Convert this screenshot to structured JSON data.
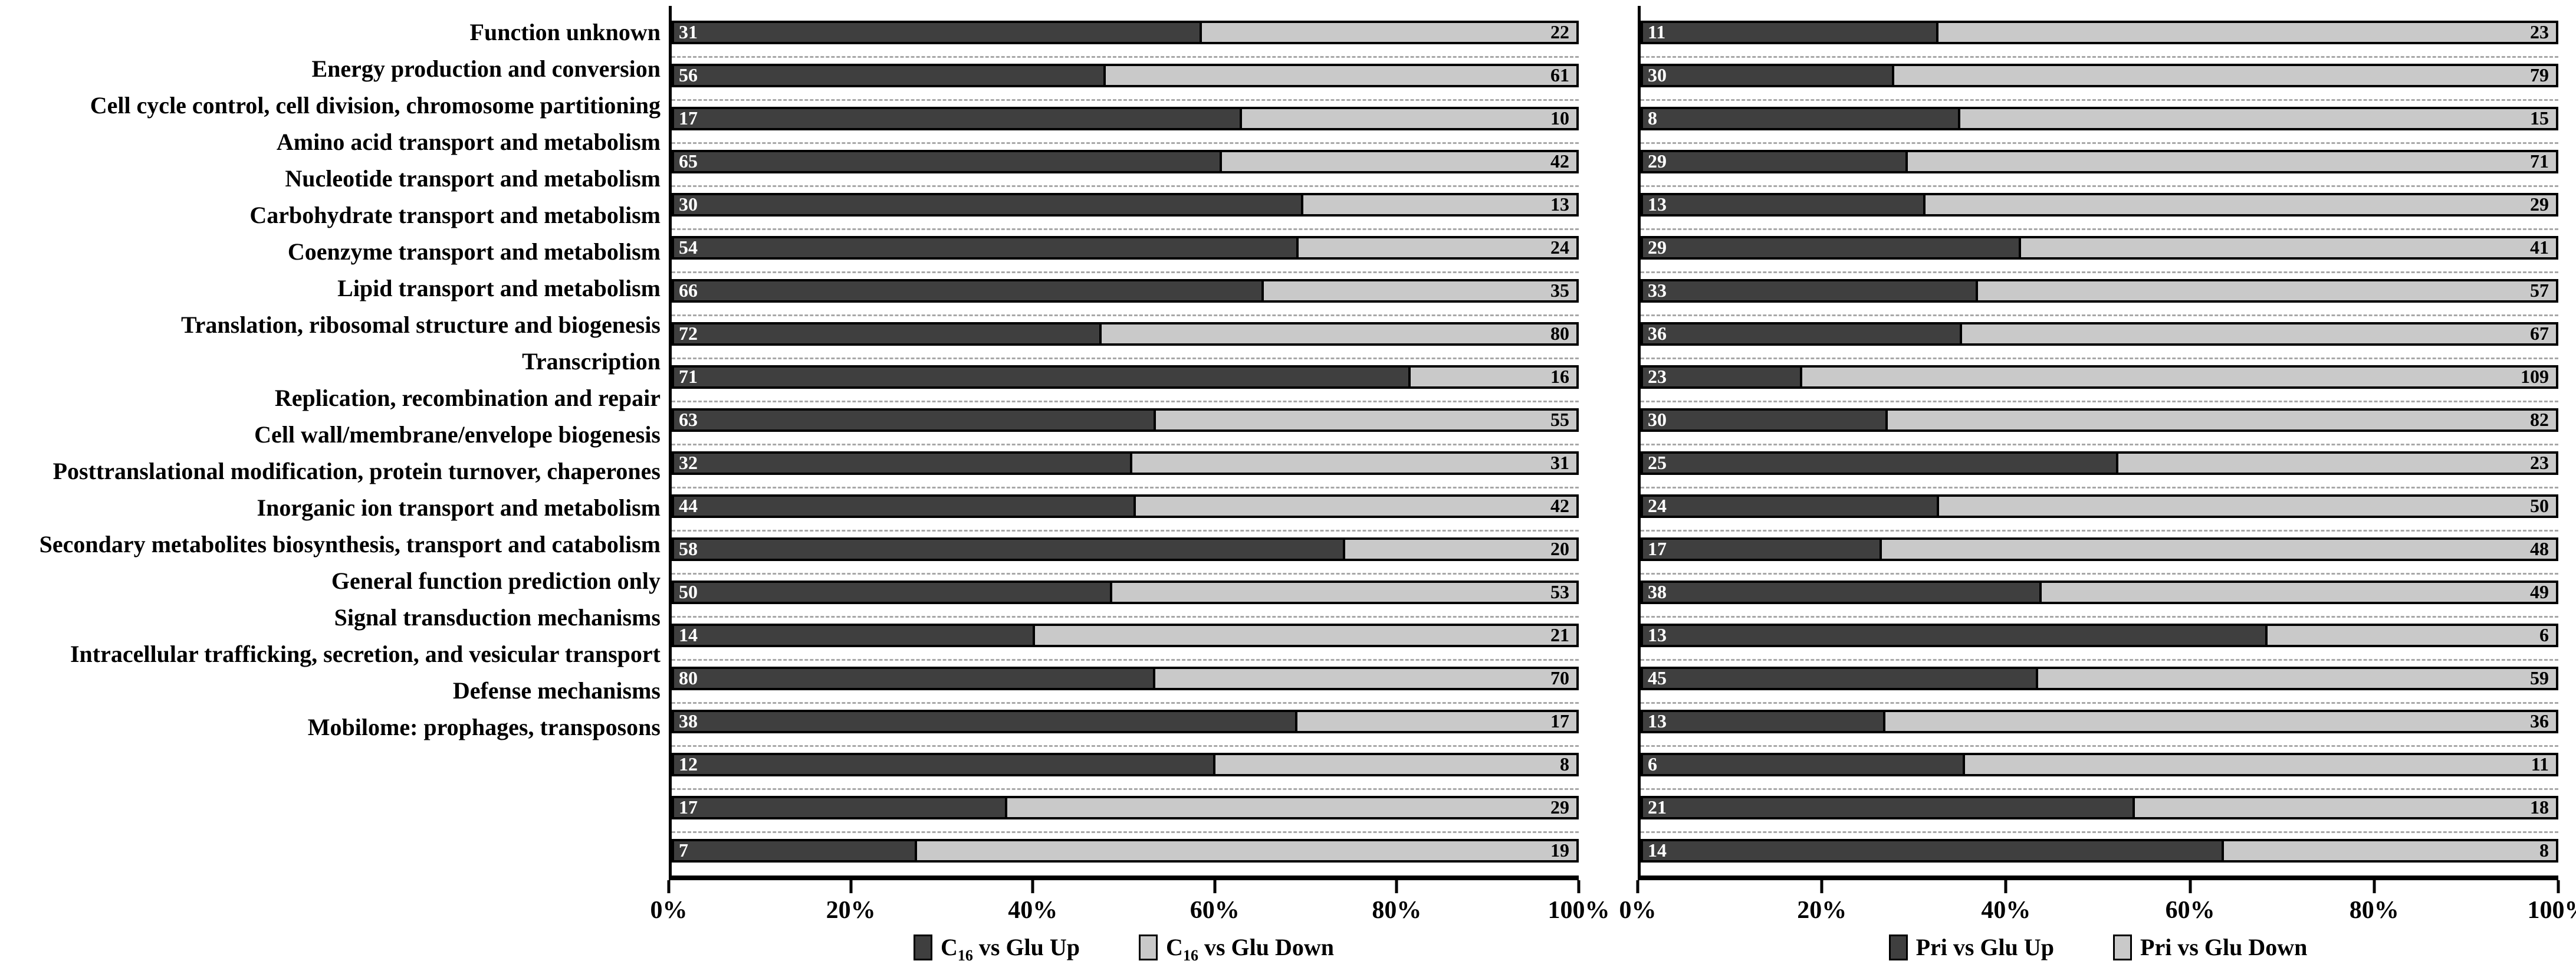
{
  "colors": {
    "up_fill": "#3f3f3f",
    "down_fill": "#c9c9c9",
    "bar_border": "#000000",
    "separator_dash": "#a8a8a8",
    "background": "#ffffff"
  },
  "chart_data": [
    {
      "type": "bar",
      "subtype": "horizontal-100pct-stacked",
      "panel": "left",
      "xlim": [
        0,
        100
      ],
      "x_ticks": [
        "0%",
        "20%",
        "40%",
        "60%",
        "80%",
        "100%"
      ],
      "grid": "dashed horizontal separators between bars",
      "legend_position": "bottom-center",
      "categories": [
        "Function unknown",
        "Energy production and conversion",
        "Cell cycle control, cell division, chromosome partitioning",
        "Amino acid transport and metabolism",
        "Nucleotide transport and metabolism",
        "Carbohydrate transport and metabolism",
        "Coenzyme transport and metabolism",
        "Lipid transport and metabolism",
        "Translation, ribosomal structure and biogenesis",
        "Transcription",
        "Replication, recombination and repair",
        "Cell wall/membrane/envelope biogenesis",
        "Posttranslational modification, protein turnover, chaperones",
        "Inorganic ion transport and metabolism",
        "Secondary metabolites biosynthesis, transport and catabolism",
        "General function prediction only",
        "Signal transduction mechanisms",
        "Intracellular trafficking, secretion, and vesicular transport",
        "Defense mechanisms",
        "Mobilome: prophages, transposons"
      ],
      "series": [
        {
          "name": "C16 vs Glu Up",
          "legend_pre": "C",
          "legend_sub": "16",
          "legend_post": " vs Glu Up",
          "color": "#3f3f3f",
          "values": [
            31,
            56,
            17,
            65,
            30,
            54,
            66,
            72,
            71,
            63,
            32,
            44,
            58,
            50,
            14,
            80,
            38,
            12,
            17,
            7
          ]
        },
        {
          "name": "C16 vs Glu Down",
          "legend_pre": "C",
          "legend_sub": "16",
          "legend_post": " vs Glu Down",
          "color": "#c9c9c9",
          "values": [
            22,
            61,
            10,
            42,
            13,
            24,
            35,
            80,
            16,
            55,
            31,
            42,
            20,
            53,
            21,
            70,
            17,
            8,
            29,
            19
          ]
        }
      ]
    },
    {
      "type": "bar",
      "subtype": "horizontal-100pct-stacked",
      "panel": "right",
      "xlim": [
        0,
        100
      ],
      "x_ticks": [
        "0%",
        "20%",
        "40%",
        "60%",
        "80%",
        "100%"
      ],
      "grid": "dashed horizontal separators between bars",
      "legend_position": "bottom-center",
      "categories": [
        "Function unknown",
        "Energy production and conversion",
        "Cell cycle control, cell division, chromosome partitioning",
        "Amino acid transport and metabolism",
        "Nucleotide transport and metabolism",
        "Carbohydrate transport and metabolism",
        "Coenzyme transport and metabolism",
        "Lipid transport and metabolism",
        "Translation, ribosomal structure and biogenesis",
        "Transcription",
        "Replication, recombination and repair",
        "Cell wall/membrane/envelope biogenesis",
        "Posttranslational modification, protein turnover, chaperones",
        "Inorganic ion transport and metabolism",
        "Secondary metabolites biosynthesis, transport and catabolism",
        "General function prediction only",
        "Signal transduction mechanisms",
        "Intracellular trafficking, secretion, and vesicular transport",
        "Defense mechanisms",
        "Mobilome: prophages, transposons"
      ],
      "series": [
        {
          "name": "Pri vs Glu Up",
          "legend_pre": "Pri",
          "legend_sub": "",
          "legend_post": " vs Glu Up",
          "color": "#3f3f3f",
          "values": [
            11,
            30,
            8,
            29,
            13,
            29,
            33,
            36,
            23,
            30,
            25,
            24,
            17,
            38,
            13,
            45,
            13,
            6,
            21,
            14
          ]
        },
        {
          "name": "Pri vs Glu Down",
          "legend_pre": "Pri",
          "legend_sub": "",
          "legend_post": " vs Glu Down",
          "color": "#c9c9c9",
          "values": [
            23,
            79,
            15,
            71,
            29,
            41,
            57,
            67,
            109,
            82,
            23,
            50,
            48,
            49,
            6,
            59,
            36,
            11,
            18,
            8
          ]
        }
      ]
    }
  ]
}
